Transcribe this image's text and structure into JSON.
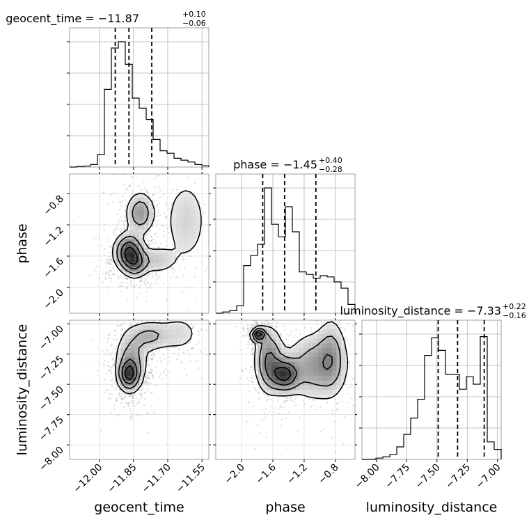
{
  "chart_data": {
    "type": "corner",
    "grid": true,
    "parameters": [
      {
        "name": "geocent_time",
        "range": [
          -12.13,
          -11.52
        ],
        "ticks": [
          -12.0,
          -11.85,
          -11.7,
          -11.55
        ],
        "tick_labels": [
          "−12.00",
          "−11.85",
          "−11.70",
          "−11.55"
        ],
        "median": -11.87,
        "plus": 0.1,
        "minus": 0.06,
        "title_main": "geocent_time = −11.87",
        "title_plus": "+0.10",
        "title_minus": "−0.06",
        "quantiles": [
          -11.93,
          -11.87,
          -11.77
        ],
        "hist_heights": [
          0.0,
          0.004,
          0.008,
          0.02,
          0.1,
          0.62,
          0.95,
          1.0,
          0.82,
          0.55,
          0.47,
          0.38,
          0.22,
          0.13,
          0.11,
          0.07,
          0.055,
          0.04,
          0.02,
          0.01
        ]
      },
      {
        "name": "phase",
        "range": [
          -2.33,
          -0.55
        ],
        "ticks": [
          -2.0,
          -1.6,
          -1.2,
          -0.8
        ],
        "tick_labels": [
          "−2.0",
          "−1.6",
          "−1.2",
          "−0.8"
        ],
        "median": -1.45,
        "plus": 0.4,
        "minus": 0.28,
        "title_main": "phase = −1.45",
        "title_plus": "+0.40",
        "title_minus": "−0.28",
        "quantiles": [
          -1.73,
          -1.45,
          -1.05
        ],
        "hist_heights": [
          0.0,
          0.01,
          0.02,
          0.06,
          0.38,
          0.46,
          0.55,
          1.0,
          0.71,
          0.61,
          0.85,
          0.65,
          0.33,
          0.31,
          0.28,
          0.3,
          0.29,
          0.25,
          0.2,
          0.07
        ]
      },
      {
        "name": "luminosity_distance",
        "range": [
          -8.12,
          -6.97
        ],
        "ticks": [
          -8.0,
          -7.75,
          -7.5,
          -7.25,
          -7.0
        ],
        "tick_labels": [
          "−8.00",
          "−7.75",
          "−7.50",
          "−7.25",
          "−7.00"
        ],
        "median": -7.33,
        "plus": 0.22,
        "minus": 0.16,
        "title_main": "luminosity_distance = −7.33",
        "title_plus": "+0.22",
        "title_minus": "−0.16",
        "quantiles": [
          -7.49,
          -7.33,
          -7.11
        ],
        "hist_heights": [
          0.0,
          0.0,
          0.01,
          0.02,
          0.04,
          0.1,
          0.2,
          0.33,
          0.48,
          0.83,
          0.97,
          0.87,
          0.68,
          0.68,
          0.56,
          0.66,
          0.6,
          0.98,
          0.14,
          0.08
        ]
      }
    ],
    "pairs": [
      {
        "x": 0,
        "y": 1,
        "blobs": [
          {
            "cx": -11.87,
            "cy": -1.55,
            "sx": 0.035,
            "sy": 0.13,
            "w": 1.0
          },
          {
            "cx": -11.84,
            "cy": -1.7,
            "sx": 0.03,
            "sy": 0.1,
            "w": 0.5
          },
          {
            "cx": -11.82,
            "cy": -1.05,
            "sx": 0.035,
            "sy": 0.15,
            "w": 0.55
          },
          {
            "cx": -11.75,
            "cy": -1.65,
            "sx": 0.05,
            "sy": 0.1,
            "w": 0.3
          },
          {
            "cx": -11.62,
            "cy": -1.15,
            "sx": 0.06,
            "sy": 0.35,
            "w": 0.25
          }
        ]
      },
      {
        "x": 0,
        "y": 2,
        "blobs": [
          {
            "cx": -11.87,
            "cy": -7.42,
            "sx": 0.025,
            "sy": 0.07,
            "w": 1.0
          },
          {
            "cx": -11.86,
            "cy": -7.3,
            "sx": 0.04,
            "sy": 0.14,
            "w": 0.55
          },
          {
            "cx": -11.78,
            "cy": -7.1,
            "sx": 0.05,
            "sy": 0.07,
            "w": 0.45
          },
          {
            "cx": -11.65,
            "cy": -7.08,
            "sx": 0.06,
            "sy": 0.1,
            "w": 0.25
          }
        ]
      },
      {
        "x": 1,
        "y": 2,
        "blobs": [
          {
            "cx": -1.78,
            "cy": -7.09,
            "sx": 0.05,
            "sy": 0.03,
            "w": 1.0
          },
          {
            "cx": -1.45,
            "cy": -7.42,
            "sx": 0.11,
            "sy": 0.08,
            "w": 0.85
          },
          {
            "cx": -1.65,
            "cy": -7.3,
            "sx": 0.1,
            "sy": 0.15,
            "w": 0.6
          },
          {
            "cx": -1.05,
            "cy": -7.35,
            "sx": 0.22,
            "sy": 0.16,
            "w": 0.45
          },
          {
            "cx": -0.85,
            "cy": -7.25,
            "sx": 0.1,
            "sy": 0.18,
            "w": 0.3
          }
        ]
      }
    ]
  }
}
